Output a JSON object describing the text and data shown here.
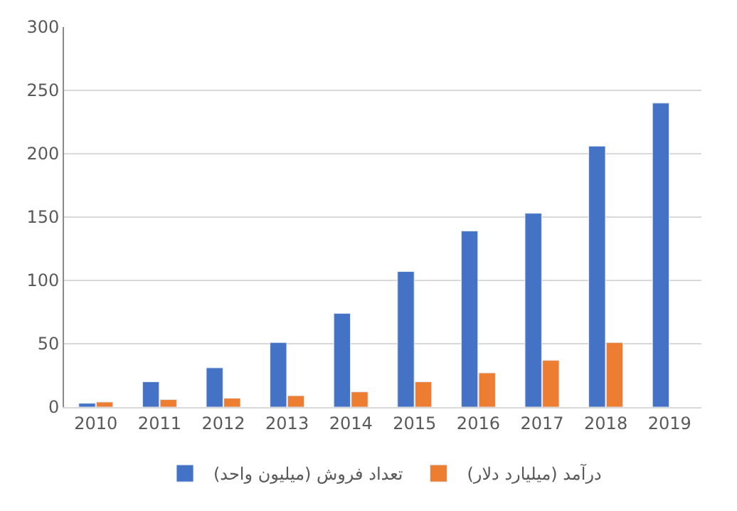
{
  "chart_data": {
    "type": "bar",
    "categories": [
      "2010",
      "2011",
      "2012",
      "2013",
      "2014",
      "2015",
      "2016",
      "2017",
      "2018",
      "2019"
    ],
    "series": [
      {
        "name": "تعداد فروش (میلیون واحد)",
        "color": "#4472c4",
        "values": [
          3,
          20,
          31,
          51,
          74,
          107,
          139,
          153,
          206,
          240
        ]
      },
      {
        "name": "درآمد (میلیارد دلار)",
        "color": "#ed7d31",
        "values": [
          4,
          6,
          7,
          9,
          12,
          20,
          27,
          37,
          51,
          null
        ]
      }
    ],
    "ylim": [
      0,
      300
    ],
    "yticks": [
      0,
      50,
      100,
      150,
      200,
      250,
      300
    ],
    "grid": "y",
    "legend": "bottom"
  }
}
